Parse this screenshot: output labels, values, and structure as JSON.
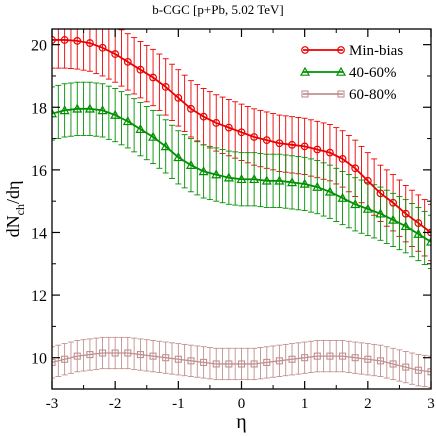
{
  "chart_data": {
    "type": "line",
    "title": "b-CGC [p+Pb, 5.02 TeV]",
    "xlabel": "η",
    "ylabel_main": "dN",
    "ylabel_sub": "ch",
    "ylabel_tail": "/dη",
    "xlim": [
      -3,
      3
    ],
    "ylim": [
      9,
      20.5
    ],
    "xticks": [
      -3,
      -2,
      -1,
      0,
      1,
      2,
      3
    ],
    "yticks": [
      10,
      12,
      14,
      16,
      18,
      20
    ],
    "grid": false,
    "legend_position": "top-right",
    "series": [
      {
        "name": "Min-bias",
        "color": "#ee0000",
        "marker": "circle",
        "x": [
          -3,
          -2.8,
          -2.6,
          -2.4,
          -2.2,
          -2.0,
          -1.8,
          -1.6,
          -1.4,
          -1.2,
          -1.0,
          -0.8,
          -0.6,
          -0.4,
          -0.2,
          0.0,
          0.2,
          0.4,
          0.6,
          0.8,
          1.0,
          1.2,
          1.4,
          1.6,
          1.8,
          2.0,
          2.2,
          2.4,
          2.6,
          2.8,
          3.0
        ],
        "y": [
          20.15,
          20.15,
          20.12,
          20.05,
          19.9,
          19.7,
          19.45,
          19.2,
          18.95,
          18.65,
          18.3,
          17.95,
          17.7,
          17.5,
          17.35,
          17.2,
          17.05,
          16.95,
          16.85,
          16.8,
          16.75,
          16.65,
          16.55,
          16.35,
          16.05,
          15.65,
          15.25,
          14.95,
          14.6,
          14.3,
          14.0
        ],
        "err": [
          0.9,
          0.9,
          0.9,
          0.9,
          0.9,
          0.9,
          0.9,
          0.9,
          0.9,
          0.9,
          0.9,
          0.9,
          0.9,
          0.9,
          0.9,
          0.9,
          0.9,
          0.9,
          0.9,
          0.9,
          0.9,
          0.9,
          0.9,
          0.9,
          0.9,
          0.9,
          0.9,
          0.9,
          0.9,
          0.9,
          0.9
        ]
      },
      {
        "name": "40-60%",
        "color": "#009000",
        "marker": "triangle",
        "x": [
          -3,
          -2.8,
          -2.6,
          -2.4,
          -2.2,
          -2.0,
          -1.8,
          -1.6,
          -1.4,
          -1.2,
          -1.0,
          -0.8,
          -0.6,
          -0.4,
          -0.2,
          0.0,
          0.2,
          0.4,
          0.6,
          0.8,
          1.0,
          1.2,
          1.4,
          1.6,
          1.8,
          2.0,
          2.2,
          2.4,
          2.6,
          2.8,
          3.0
        ],
        "y": [
          17.8,
          17.9,
          17.95,
          17.95,
          17.9,
          17.75,
          17.55,
          17.3,
          17.05,
          16.75,
          16.4,
          16.15,
          15.95,
          15.85,
          15.75,
          15.7,
          15.7,
          15.65,
          15.65,
          15.6,
          15.55,
          15.45,
          15.3,
          15.1,
          14.9,
          14.75,
          14.6,
          14.4,
          14.2,
          13.95,
          13.7
        ],
        "err": [
          0.85,
          0.85,
          0.85,
          0.85,
          0.85,
          0.85,
          0.85,
          0.85,
          0.85,
          0.85,
          0.85,
          0.85,
          0.85,
          0.85,
          0.85,
          0.85,
          0.85,
          0.85,
          0.85,
          0.85,
          0.85,
          0.85,
          0.85,
          0.85,
          0.85,
          0.85,
          0.85,
          0.85,
          0.85,
          0.85,
          0.85
        ]
      },
      {
        "name": "60-80%",
        "color": "#c09090",
        "marker": "square",
        "x": [
          -3,
          -2.8,
          -2.6,
          -2.4,
          -2.2,
          -2.0,
          -1.8,
          -1.6,
          -1.4,
          -1.2,
          -1.0,
          -0.8,
          -0.6,
          -0.4,
          -0.2,
          0.0,
          0.2,
          0.4,
          0.6,
          0.8,
          1.0,
          1.2,
          1.4,
          1.6,
          1.8,
          2.0,
          2.2,
          2.4,
          2.6,
          2.8,
          3.0
        ],
        "y": [
          9.85,
          9.95,
          10.05,
          10.1,
          10.15,
          10.15,
          10.15,
          10.1,
          10.05,
          10.0,
          9.95,
          9.9,
          9.85,
          9.8,
          9.8,
          9.8,
          9.8,
          9.85,
          9.9,
          9.95,
          10.0,
          10.05,
          10.05,
          10.05,
          10.0,
          9.95,
          9.9,
          9.8,
          9.7,
          9.6,
          9.55
        ],
        "err": [
          0.5,
          0.5,
          0.5,
          0.5,
          0.5,
          0.5,
          0.5,
          0.5,
          0.5,
          0.5,
          0.5,
          0.5,
          0.5,
          0.5,
          0.5,
          0.5,
          0.5,
          0.5,
          0.5,
          0.5,
          0.5,
          0.5,
          0.5,
          0.5,
          0.5,
          0.5,
          0.5,
          0.5,
          0.5,
          0.5,
          0.5
        ]
      }
    ]
  }
}
